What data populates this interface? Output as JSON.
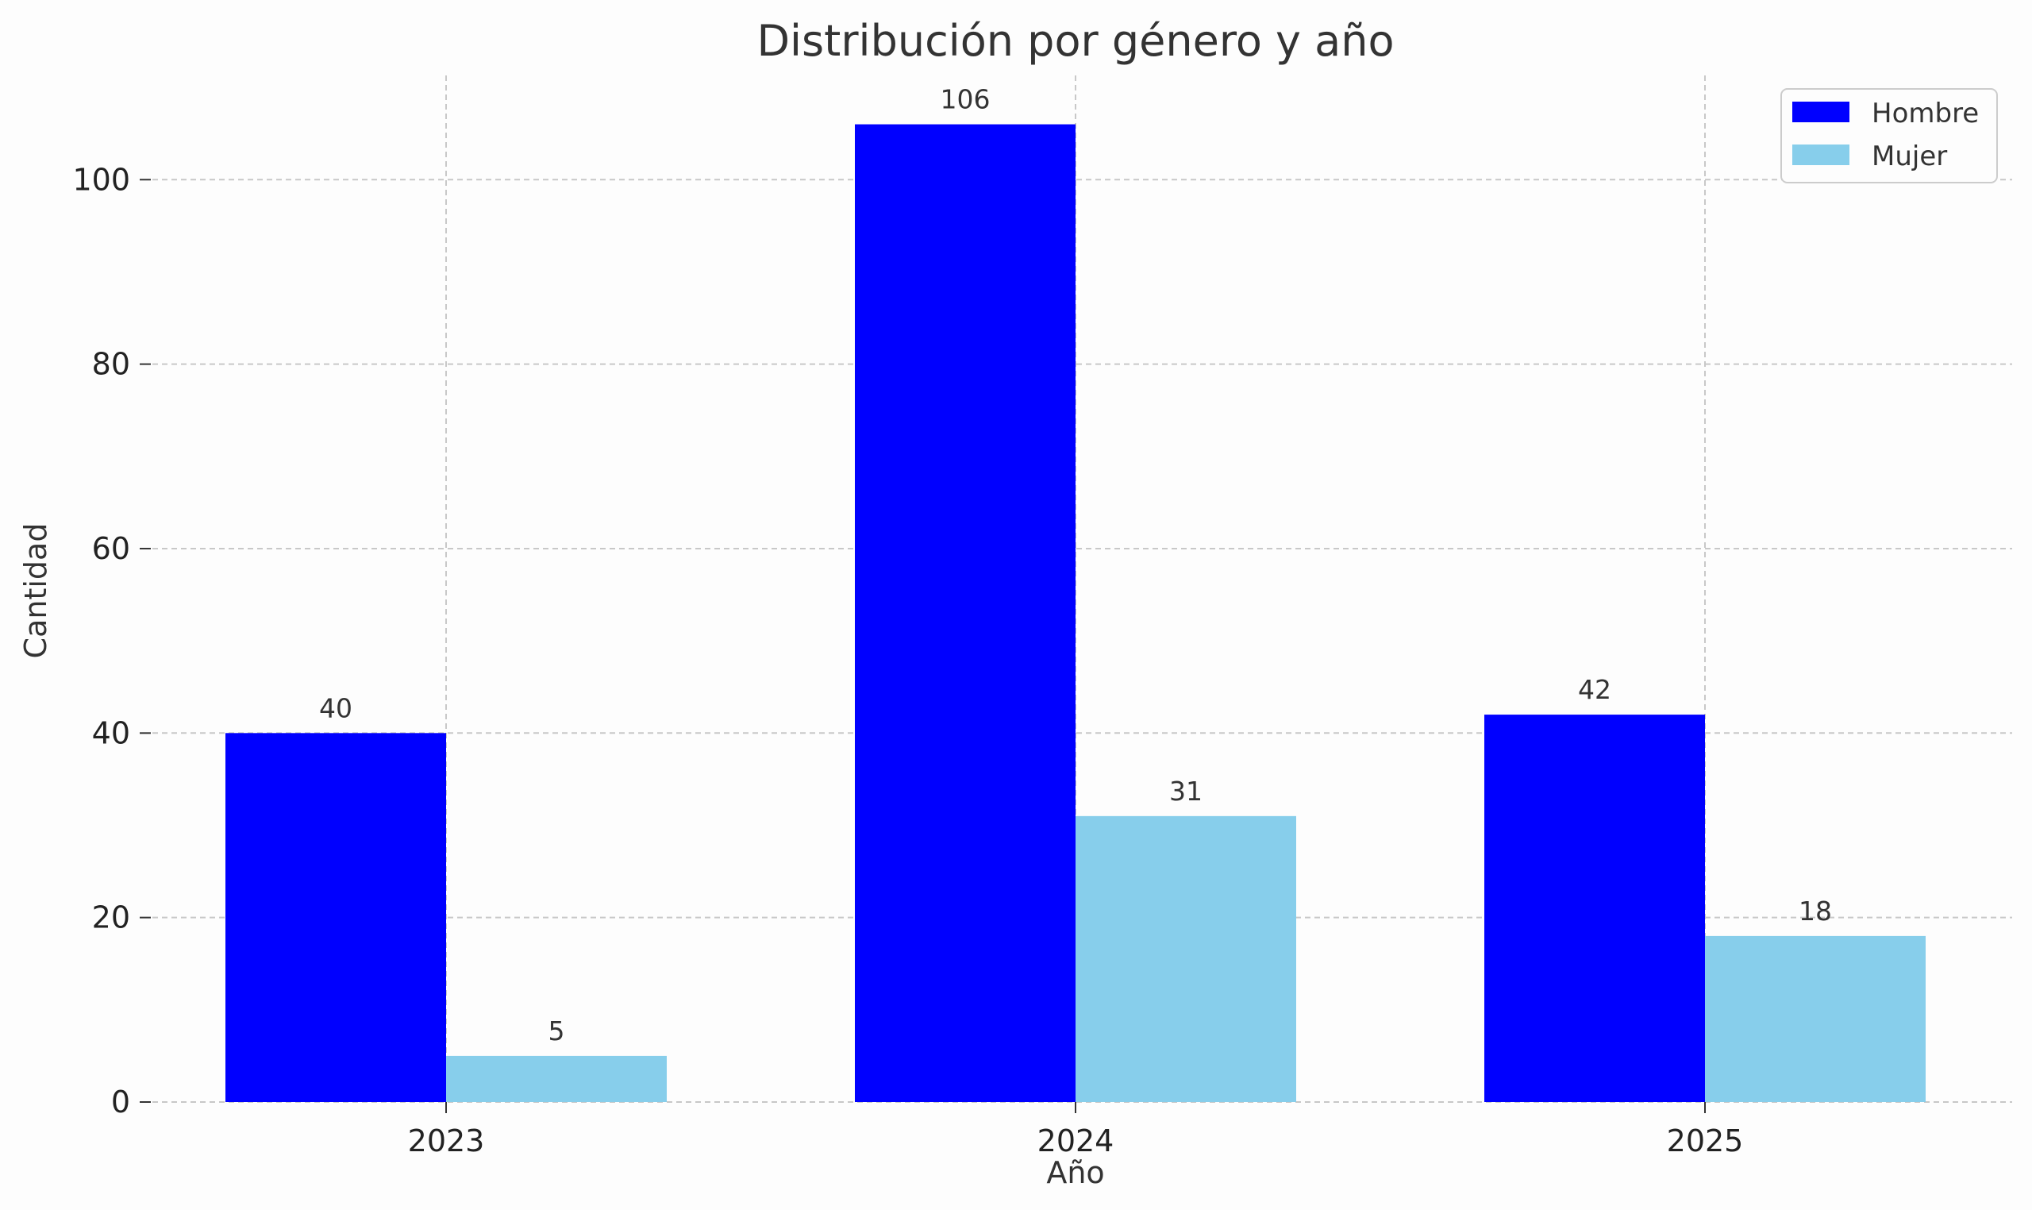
{
  "chart_data": {
    "type": "bar",
    "title": "Distribución por género y año",
    "xlabel": "Año",
    "ylabel": "Cantidad",
    "categories": [
      "2023",
      "2024",
      "2025"
    ],
    "series": [
      {
        "name": "Hombre",
        "color": "#0000ff",
        "values": [
          40,
          106,
          42
        ]
      },
      {
        "name": "Mujer",
        "color": "#87ceeb",
        "values": [
          5,
          31,
          18
        ]
      }
    ],
    "ylim": [
      0,
      111.3
    ],
    "yticks": [
      0,
      20,
      40,
      60,
      80,
      100
    ],
    "grid": true,
    "legend": "top-right",
    "data_labels": true
  }
}
